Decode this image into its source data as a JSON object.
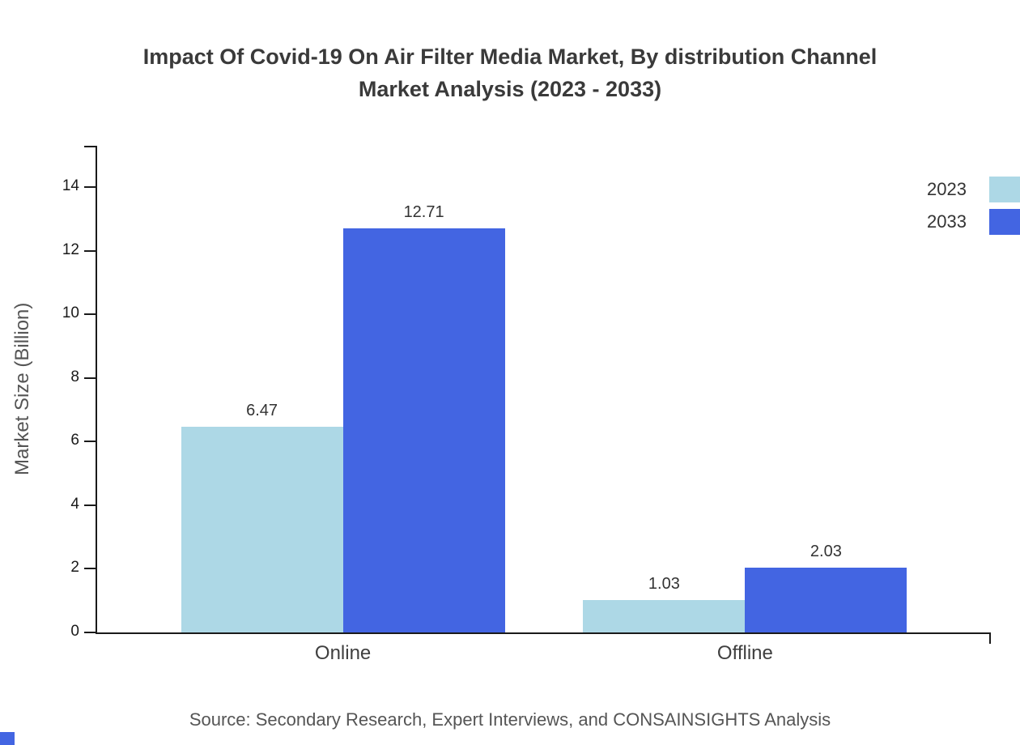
{
  "title_lines": [
    "Impact Of Covid-19 On Air Filter Media Market, By distribution Channel",
    "Market Analysis (2023 - 2033)"
  ],
  "source": "Source: Secondary Research, Expert Interviews, and CONSAINSIGHTS Analysis",
  "chart_data": {
    "type": "bar",
    "title": "Impact Of Covid-19 On Air Filter Media Market, By distribution Channel Market Analysis (2023 - 2033)",
    "categories": [
      "Online",
      "Offline"
    ],
    "series": [
      {
        "name": "2023",
        "color": "#add8e6",
        "values": [
          6.47,
          1.03
        ]
      },
      {
        "name": "2033",
        "color": "#4365e2",
        "values": [
          12.71,
          2.03
        ]
      }
    ],
    "xlabel": "",
    "ylabel": "Market Size (Billion)",
    "yticks": [
      0,
      2,
      4,
      6,
      8,
      10,
      12,
      14
    ],
    "ylim": [
      0,
      15.3
    ],
    "grid": false,
    "legend_position": "top-right",
    "bar_value_labels": true
  }
}
